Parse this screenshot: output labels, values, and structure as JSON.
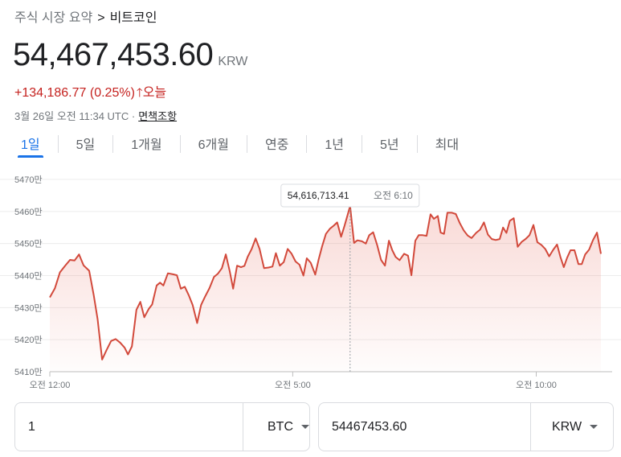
{
  "breadcrumb": {
    "parent": "주식 시장 요약",
    "separator": ">",
    "current": "비트코인"
  },
  "price": {
    "value": "54,467,453.60",
    "currency": "KRW"
  },
  "change": {
    "text": "+134,186.77 (0.25%)",
    "arrow": "🡑",
    "period": "오늘"
  },
  "meta": {
    "timestamp": "3월 26일 오전 11:34 UTC ·",
    "disclaimer": "면책조항"
  },
  "tabs": [
    "1일",
    "5일",
    "1개월",
    "6개월",
    "연중",
    "1년",
    "5년",
    "최대"
  ],
  "active_tab": 0,
  "colors": {
    "line": "#d2493b",
    "accent": "#1a73e8",
    "negative": "#c5221f"
  },
  "chart_data": {
    "type": "area",
    "xlabel": "",
    "ylabel": "",
    "ylim": [
      5410,
      5470
    ],
    "yticks": [
      5410,
      5420,
      5430,
      5440,
      5450,
      5460,
      5470
    ],
    "ytick_labels": [
      "5410만",
      "5420만",
      "5430만",
      "5440만",
      "5450만",
      "5460만",
      "5470만"
    ],
    "x_range": [
      0,
      1
    ],
    "xticks": [
      {
        "x": 0.0,
        "label": "오전 12:00"
      },
      {
        "x": 0.432,
        "label": "오전 5:00"
      },
      {
        "x": 0.865,
        "label": "오전 10:00"
      }
    ],
    "grid": "horizontal",
    "tooltip": {
      "x": 0.534,
      "price": "54,616,713.41",
      "time": "오전 6:10"
    },
    "series": [
      {
        "values": [
          [
            0.0,
            5433.2
          ],
          [
            0.009,
            5436.0
          ],
          [
            0.018,
            5441.0
          ],
          [
            0.027,
            5443.0
          ],
          [
            0.036,
            5444.9
          ],
          [
            0.044,
            5444.7
          ],
          [
            0.052,
            5446.6
          ],
          [
            0.06,
            5443.2
          ],
          [
            0.07,
            5441.5
          ],
          [
            0.078,
            5434.0
          ],
          [
            0.085,
            5426.4
          ],
          [
            0.093,
            5413.8
          ],
          [
            0.101,
            5416.8
          ],
          [
            0.109,
            5419.6
          ],
          [
            0.117,
            5420.2
          ],
          [
            0.125,
            5419.1
          ],
          [
            0.133,
            5417.5
          ],
          [
            0.139,
            5415.4
          ],
          [
            0.146,
            5417.9
          ],
          [
            0.154,
            5429.3
          ],
          [
            0.161,
            5431.8
          ],
          [
            0.168,
            5427.0
          ],
          [
            0.176,
            5429.6
          ],
          [
            0.182,
            5431.0
          ],
          [
            0.19,
            5436.9
          ],
          [
            0.196,
            5437.8
          ],
          [
            0.202,
            5436.9
          ],
          [
            0.21,
            5440.7
          ],
          [
            0.219,
            5440.4
          ],
          [
            0.226,
            5440.1
          ],
          [
            0.233,
            5435.9
          ],
          [
            0.24,
            5436.5
          ],
          [
            0.247,
            5433.9
          ],
          [
            0.254,
            5430.8
          ],
          [
            0.262,
            5425.2
          ],
          [
            0.269,
            5430.8
          ],
          [
            0.276,
            5433.4
          ],
          [
            0.284,
            5436.1
          ],
          [
            0.292,
            5439.6
          ],
          [
            0.299,
            5440.6
          ],
          [
            0.306,
            5442.3
          ],
          [
            0.313,
            5446.6
          ],
          [
            0.32,
            5441.3
          ],
          [
            0.326,
            5435.9
          ],
          [
            0.333,
            5443.1
          ],
          [
            0.34,
            5442.6
          ],
          [
            0.346,
            5443.0
          ],
          [
            0.352,
            5445.9
          ],
          [
            0.359,
            5448.3
          ],
          [
            0.366,
            5451.6
          ],
          [
            0.373,
            5448.3
          ],
          [
            0.381,
            5442.3
          ],
          [
            0.389,
            5442.5
          ],
          [
            0.396,
            5442.8
          ],
          [
            0.402,
            5447.0
          ],
          [
            0.409,
            5443.1
          ],
          [
            0.416,
            5444.2
          ],
          [
            0.423,
            5448.3
          ],
          [
            0.43,
            5446.8
          ],
          [
            0.437,
            5444.4
          ],
          [
            0.444,
            5443.4
          ],
          [
            0.451,
            5440.0
          ],
          [
            0.457,
            5445.4
          ],
          [
            0.464,
            5444.0
          ],
          [
            0.472,
            5440.3
          ],
          [
            0.478,
            5445.0
          ],
          [
            0.484,
            5449.0
          ],
          [
            0.491,
            5453.0
          ],
          [
            0.498,
            5454.6
          ],
          [
            0.505,
            5455.6
          ],
          [
            0.511,
            5456.6
          ],
          [
            0.518,
            5452.1
          ],
          [
            0.524,
            5455.5
          ],
          [
            0.534,
            5461.7
          ],
          [
            0.541,
            5450.2
          ],
          [
            0.547,
            5451.0
          ],
          [
            0.555,
            5450.7
          ],
          [
            0.562,
            5450.0
          ],
          [
            0.568,
            5452.6
          ],
          [
            0.575,
            5453.5
          ],
          [
            0.582,
            5449.6
          ],
          [
            0.589,
            5444.9
          ],
          [
            0.596,
            5443.1
          ],
          [
            0.603,
            5450.9
          ],
          [
            0.609,
            5447.9
          ],
          [
            0.615,
            5445.8
          ],
          [
            0.622,
            5444.8
          ],
          [
            0.63,
            5446.8
          ],
          [
            0.637,
            5446.2
          ],
          [
            0.643,
            5440.1
          ],
          [
            0.65,
            5450.9
          ],
          [
            0.656,
            5452.6
          ],
          [
            0.663,
            5452.6
          ],
          [
            0.67,
            5452.4
          ],
          [
            0.677,
            5459.1
          ],
          [
            0.683,
            5457.7
          ],
          [
            0.69,
            5458.6
          ],
          [
            0.695,
            5453.4
          ],
          [
            0.701,
            5453.0
          ],
          [
            0.707,
            5459.6
          ],
          [
            0.715,
            5459.6
          ],
          [
            0.722,
            5459.2
          ],
          [
            0.729,
            5456.4
          ],
          [
            0.736,
            5454.1
          ],
          [
            0.743,
            5452.5
          ],
          [
            0.75,
            5451.7
          ],
          [
            0.758,
            5453.3
          ],
          [
            0.765,
            5454.3
          ],
          [
            0.772,
            5456.6
          ],
          [
            0.779,
            5452.8
          ],
          [
            0.786,
            5451.4
          ],
          [
            0.793,
            5451.1
          ],
          [
            0.8,
            5451.4
          ],
          [
            0.806,
            5455.0
          ],
          [
            0.812,
            5453.3
          ],
          [
            0.818,
            5457.1
          ],
          [
            0.825,
            5457.9
          ],
          [
            0.832,
            5449.0
          ],
          [
            0.839,
            5450.5
          ],
          [
            0.846,
            5451.4
          ],
          [
            0.853,
            5452.6
          ],
          [
            0.86,
            5455.8
          ],
          [
            0.867,
            5450.4
          ],
          [
            0.874,
            5449.6
          ],
          [
            0.881,
            5448.3
          ],
          [
            0.888,
            5446.0
          ],
          [
            0.895,
            5448.0
          ],
          [
            0.902,
            5449.7
          ],
          [
            0.908,
            5445.8
          ],
          [
            0.914,
            5442.6
          ],
          [
            0.92,
            5445.6
          ],
          [
            0.926,
            5447.9
          ],
          [
            0.933,
            5447.9
          ],
          [
            0.94,
            5443.6
          ],
          [
            0.946,
            5443.6
          ],
          [
            0.952,
            5446.6
          ],
          [
            0.959,
            5448.1
          ],
          [
            0.966,
            5451.1
          ],
          [
            0.973,
            5453.4
          ],
          [
            0.98,
            5446.8
          ]
        ]
      }
    ]
  },
  "converter": {
    "left": {
      "value": "1",
      "unit": "BTC"
    },
    "right": {
      "value": "54467453.60",
      "unit": "KRW"
    }
  }
}
